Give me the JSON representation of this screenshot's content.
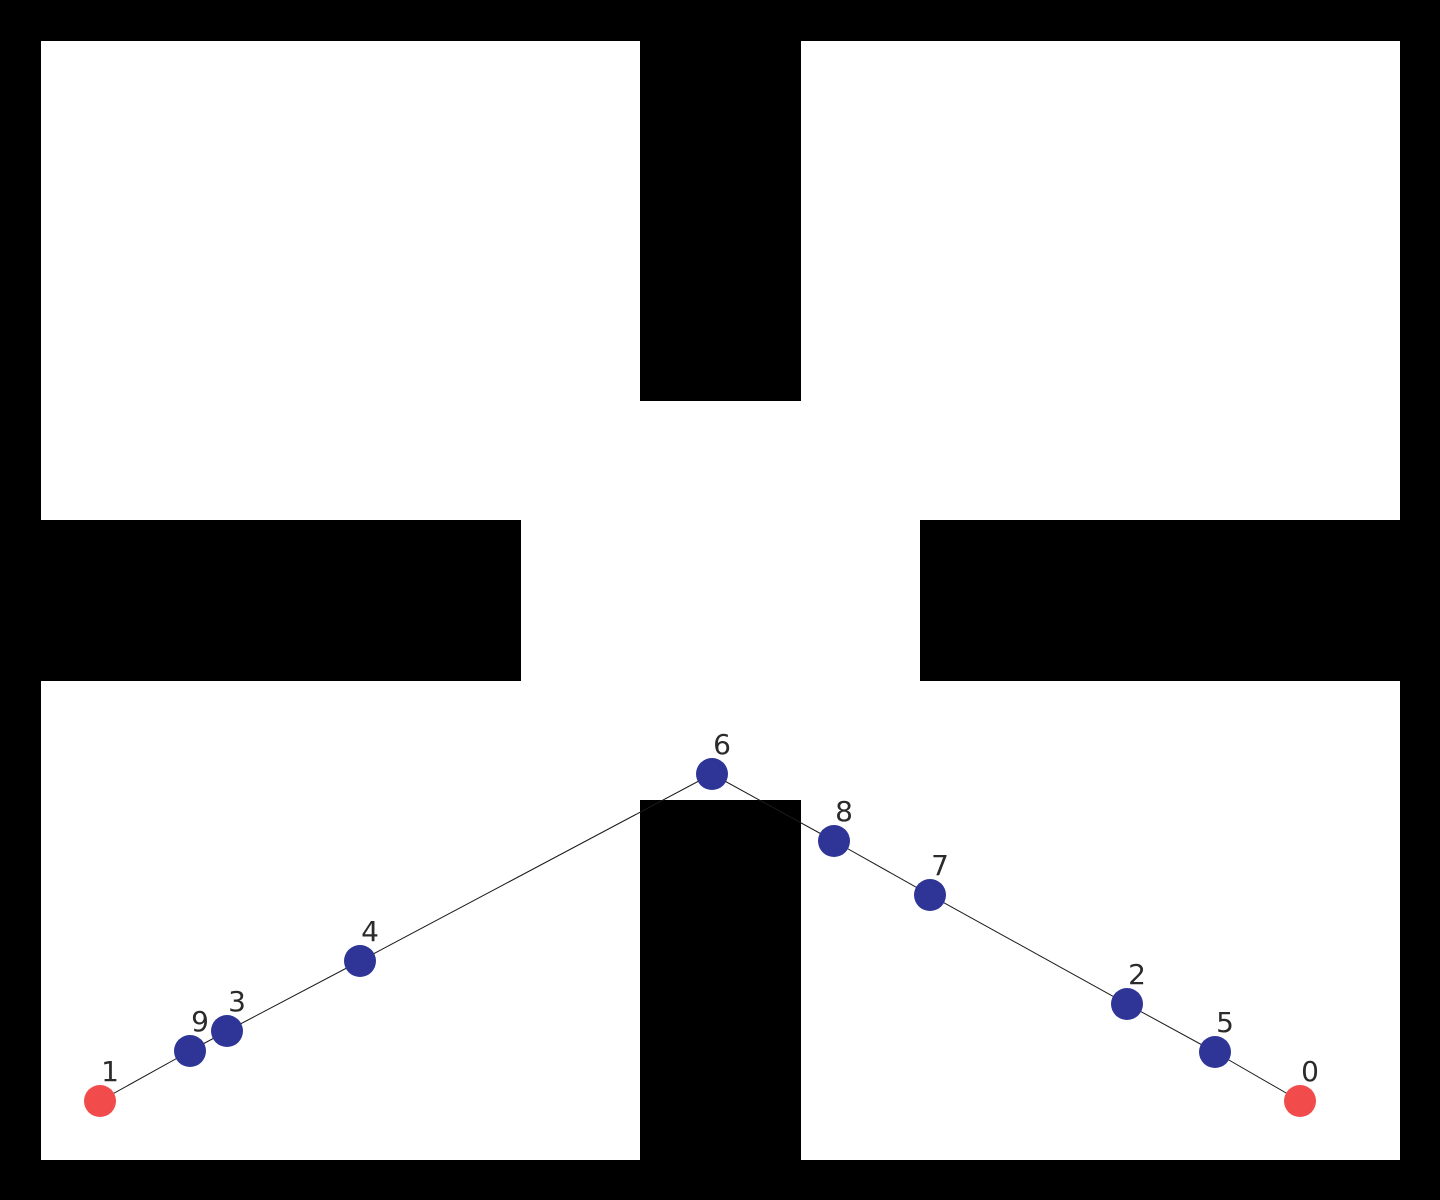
{
  "diagram": {
    "colors": {
      "wall": "#000000",
      "free_space": "#ffffff",
      "endpoint_node": "#f24b4b",
      "waypoint_node": "#2e3597",
      "edge": "#1a1a1a",
      "label": "#2b2b2b"
    },
    "nodes": [
      {
        "id": "0",
        "label": "0",
        "role": "endpoint"
      },
      {
        "id": "1",
        "label": "1",
        "role": "endpoint"
      },
      {
        "id": "2",
        "label": "2",
        "role": "waypoint"
      },
      {
        "id": "3",
        "label": "3",
        "role": "waypoint"
      },
      {
        "id": "4",
        "label": "4",
        "role": "waypoint"
      },
      {
        "id": "5",
        "label": "5",
        "role": "waypoint"
      },
      {
        "id": "6",
        "label": "6",
        "role": "waypoint"
      },
      {
        "id": "7",
        "label": "7",
        "role": "waypoint"
      },
      {
        "id": "8",
        "label": "8",
        "role": "waypoint"
      },
      {
        "id": "9",
        "label": "9",
        "role": "waypoint"
      }
    ],
    "path": [
      "0",
      "5",
      "2",
      "7",
      "8",
      "6",
      "4",
      "3",
      "9",
      "1"
    ]
  }
}
